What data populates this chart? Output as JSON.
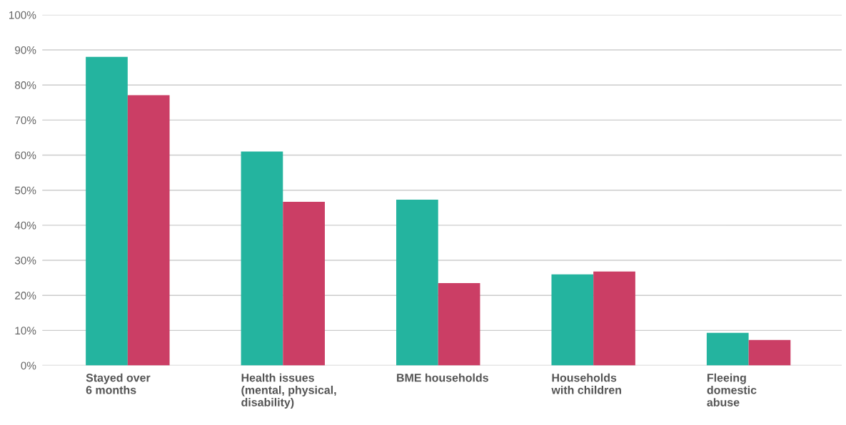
{
  "chart_data": {
    "type": "bar",
    "categories": [
      "Stayed over\n6 months",
      "Health issues\n(mental, physical,\ndisability)",
      "BME households",
      "Households\nwith children",
      "Fleeing\ndomestic\nabuse"
    ],
    "series": [
      {
        "color": "#24b49f",
        "values": [
          88.0,
          61.0,
          47.3,
          26.0,
          9.3
        ]
      },
      {
        "color": "#cb3e65",
        "values": [
          77.1,
          46.7,
          23.5,
          26.8,
          7.3
        ]
      }
    ],
    "ylim": [
      0,
      100
    ],
    "yticks": [
      {
        "value": 0,
        "label": "0%"
      },
      {
        "value": 10,
        "label": "10%"
      },
      {
        "value": 20,
        "label": "20%"
      },
      {
        "value": 30,
        "label": "30%"
      },
      {
        "value": 40,
        "label": "40%"
      },
      {
        "value": 50,
        "label": "50%"
      },
      {
        "value": 60,
        "label": "60%"
      },
      {
        "value": 70,
        "label": "70%"
      },
      {
        "value": 80,
        "label": "80%"
      },
      {
        "value": 90,
        "label": "90%"
      },
      {
        "value": 100,
        "label": "100%"
      }
    ],
    "grid": "y",
    "legend": false
  }
}
